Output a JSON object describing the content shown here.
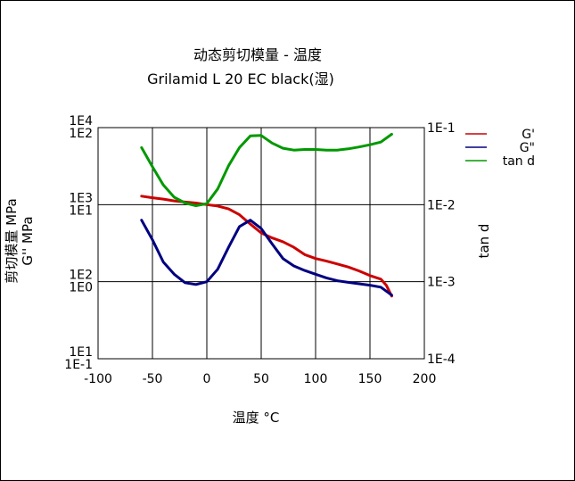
{
  "chart_data": {
    "type": "line",
    "title": "动态剪切模量 - 温度",
    "subtitle": "Grilamid L 20 EC black(湿)",
    "xlabel": "温度 °C",
    "ylabel_left_1": "剪切模量 MPa",
    "ylabel_left_2": "G'' MPa",
    "ylabel_right": "tan d",
    "xlim": [
      -100,
      200
    ],
    "x_ticks": [
      "-100",
      "-50",
      "0",
      "50",
      "100",
      "150",
      "200"
    ],
    "y_left_ticks_primary": [
      "1E4",
      "1E3",
      "1E2",
      "1E1"
    ],
    "y_left_ticks_secondary": [
      "1E2",
      "1E1",
      "1E0",
      "1E-1"
    ],
    "y_right_ticks": [
      "1E-1",
      "1E-2",
      "1E-3",
      "1E-4"
    ],
    "grid": true,
    "legend_position": "right",
    "series": [
      {
        "name": "G'",
        "color": "#cc0000",
        "axis": "left_primary (log, 1E1–1E4)",
        "x": [
          -60,
          -50,
          -40,
          -30,
          -20,
          -10,
          0,
          10,
          20,
          30,
          40,
          50,
          60,
          70,
          80,
          90,
          100,
          110,
          120,
          130,
          140,
          150,
          160,
          165,
          170
        ],
        "y": [
          1290,
          1230,
          1180,
          1120,
          1080,
          1050,
          1000,
          960,
          880,
          740,
          560,
          430,
          370,
          330,
          280,
          225,
          200,
          185,
          170,
          155,
          138,
          120,
          108,
          90,
          65
        ]
      },
      {
        "name": "G\"",
        "color": "#000080",
        "axis": "left_secondary (log, 1E-1–1E2)",
        "x": [
          -60,
          -50,
          -40,
          -30,
          -20,
          -10,
          0,
          10,
          20,
          30,
          40,
          50,
          60,
          70,
          80,
          90,
          100,
          110,
          120,
          130,
          140,
          150,
          160,
          170
        ],
        "y": [
          6.3,
          3.5,
          1.8,
          1.25,
          0.97,
          0.92,
          1.0,
          1.45,
          2.8,
          5.2,
          6.3,
          4.9,
          3.1,
          2.0,
          1.6,
          1.4,
          1.25,
          1.12,
          1.03,
          0.98,
          0.94,
          0.9,
          0.85,
          0.67
        ]
      },
      {
        "name": "tan d",
        "color": "#009900",
        "axis": "right (log, 1E-4–1E-1)",
        "x": [
          -60,
          -50,
          -40,
          -30,
          -20,
          -10,
          0,
          10,
          20,
          30,
          40,
          50,
          60,
          70,
          80,
          90,
          100,
          110,
          120,
          130,
          140,
          150,
          160,
          170
        ],
        "y": [
          0.055,
          0.031,
          0.018,
          0.0125,
          0.0105,
          0.0097,
          0.0103,
          0.016,
          0.032,
          0.055,
          0.078,
          0.079,
          0.063,
          0.054,
          0.051,
          0.052,
          0.052,
          0.051,
          0.051,
          0.053,
          0.056,
          0.06,
          0.065,
          0.082
        ]
      }
    ]
  }
}
